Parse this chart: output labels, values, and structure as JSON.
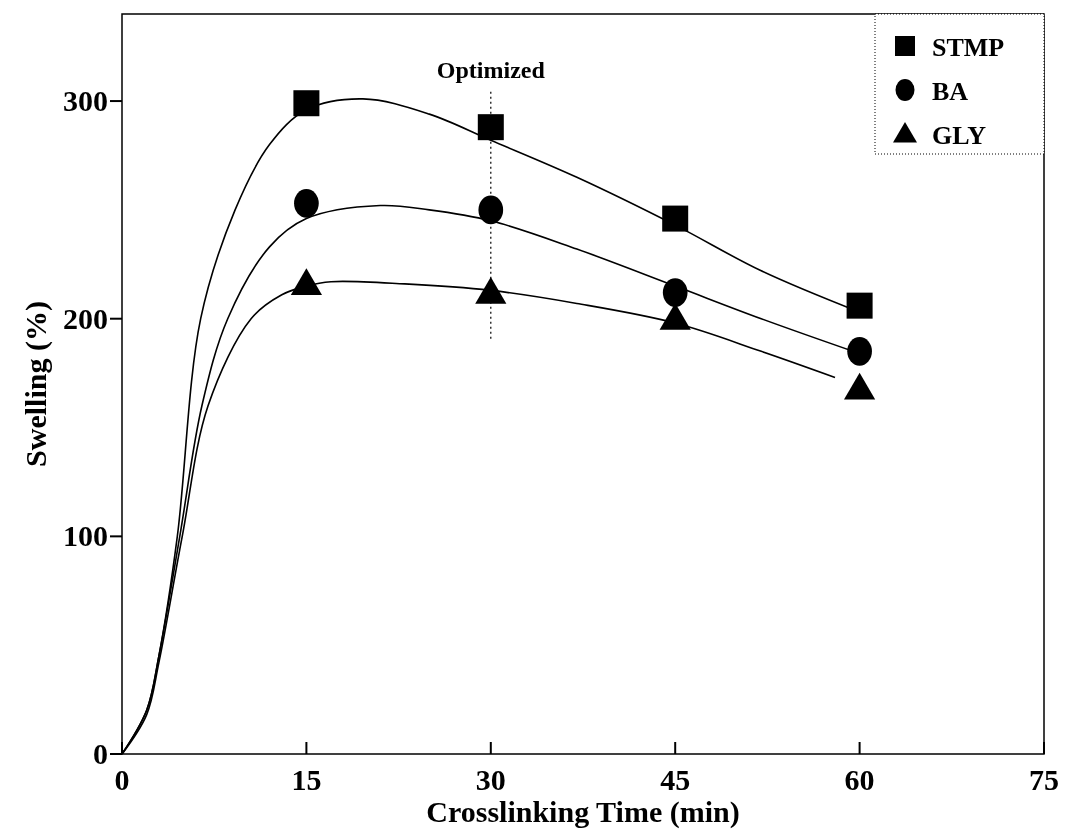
{
  "chart_data": {
    "type": "scatter",
    "xlabel": "Crosslinking Time (min)",
    "ylabel": "Swelling (%)",
    "xlim": [
      0,
      75
    ],
    "ylim": [
      0,
      340
    ],
    "xticks": [
      0,
      15,
      30,
      45,
      60,
      75
    ],
    "yticks": [
      0,
      100,
      200,
      300
    ],
    "grid": false,
    "legend": "top right",
    "ref_lines": [
      {
        "axis": "x",
        "value": 30,
        "label": "Optimized",
        "line_style": "dotted",
        "color": "#000000"
      }
    ],
    "series": [
      {
        "name": "STMP",
        "marker": "square",
        "color": "#000000",
        "x": [
          15,
          30,
          45,
          60
        ],
        "values": [
          299,
          288,
          246,
          206
        ]
      },
      {
        "name": "BA",
        "marker": "circle",
        "color": "#000000",
        "x": [
          15,
          30,
          45,
          60
        ],
        "values": [
          253,
          250,
          212,
          185
        ]
      },
      {
        "name": "GLY",
        "marker": "triangle",
        "color": "#000000",
        "x": [
          15,
          30,
          45,
          60
        ],
        "values": [
          216,
          212,
          200,
          168
        ]
      },
      {
        "type": "line",
        "marker": "none",
        "color": "#000000",
        "x": [
          0,
          2,
          3,
          4.5,
          6.4,
          9.2,
          12,
          15,
          19.6,
          25,
          30,
          37,
          45,
          52,
          60
        ],
        "values": [
          0,
          20,
          45,
          100,
          200,
          250,
          280,
          296,
          301,
          294,
          282,
          265,
          243,
          222,
          203
        ]
      },
      {
        "type": "line",
        "marker": "none",
        "color": "#000000",
        "x": [
          0,
          2,
          3,
          4.7,
          6.5,
          8.6,
          12,
          15,
          21,
          25,
          30,
          37,
          45,
          52,
          60
        ],
        "values": [
          0,
          20,
          45,
          100,
          160,
          200,
          233,
          246,
          252,
          250,
          245,
          232,
          215,
          200,
          184
        ]
      },
      {
        "type": "line",
        "marker": "none",
        "color": "#000000",
        "x": [
          0,
          2,
          3,
          4.9,
          7,
          10.5,
          13,
          15,
          17,
          23,
          30,
          37,
          45,
          52,
          58
        ],
        "values": [
          0,
          18,
          42,
          100,
          160,
          200,
          211,
          215,
          217,
          216,
          213,
          207,
          198,
          185,
          173
        ]
      }
    ]
  }
}
